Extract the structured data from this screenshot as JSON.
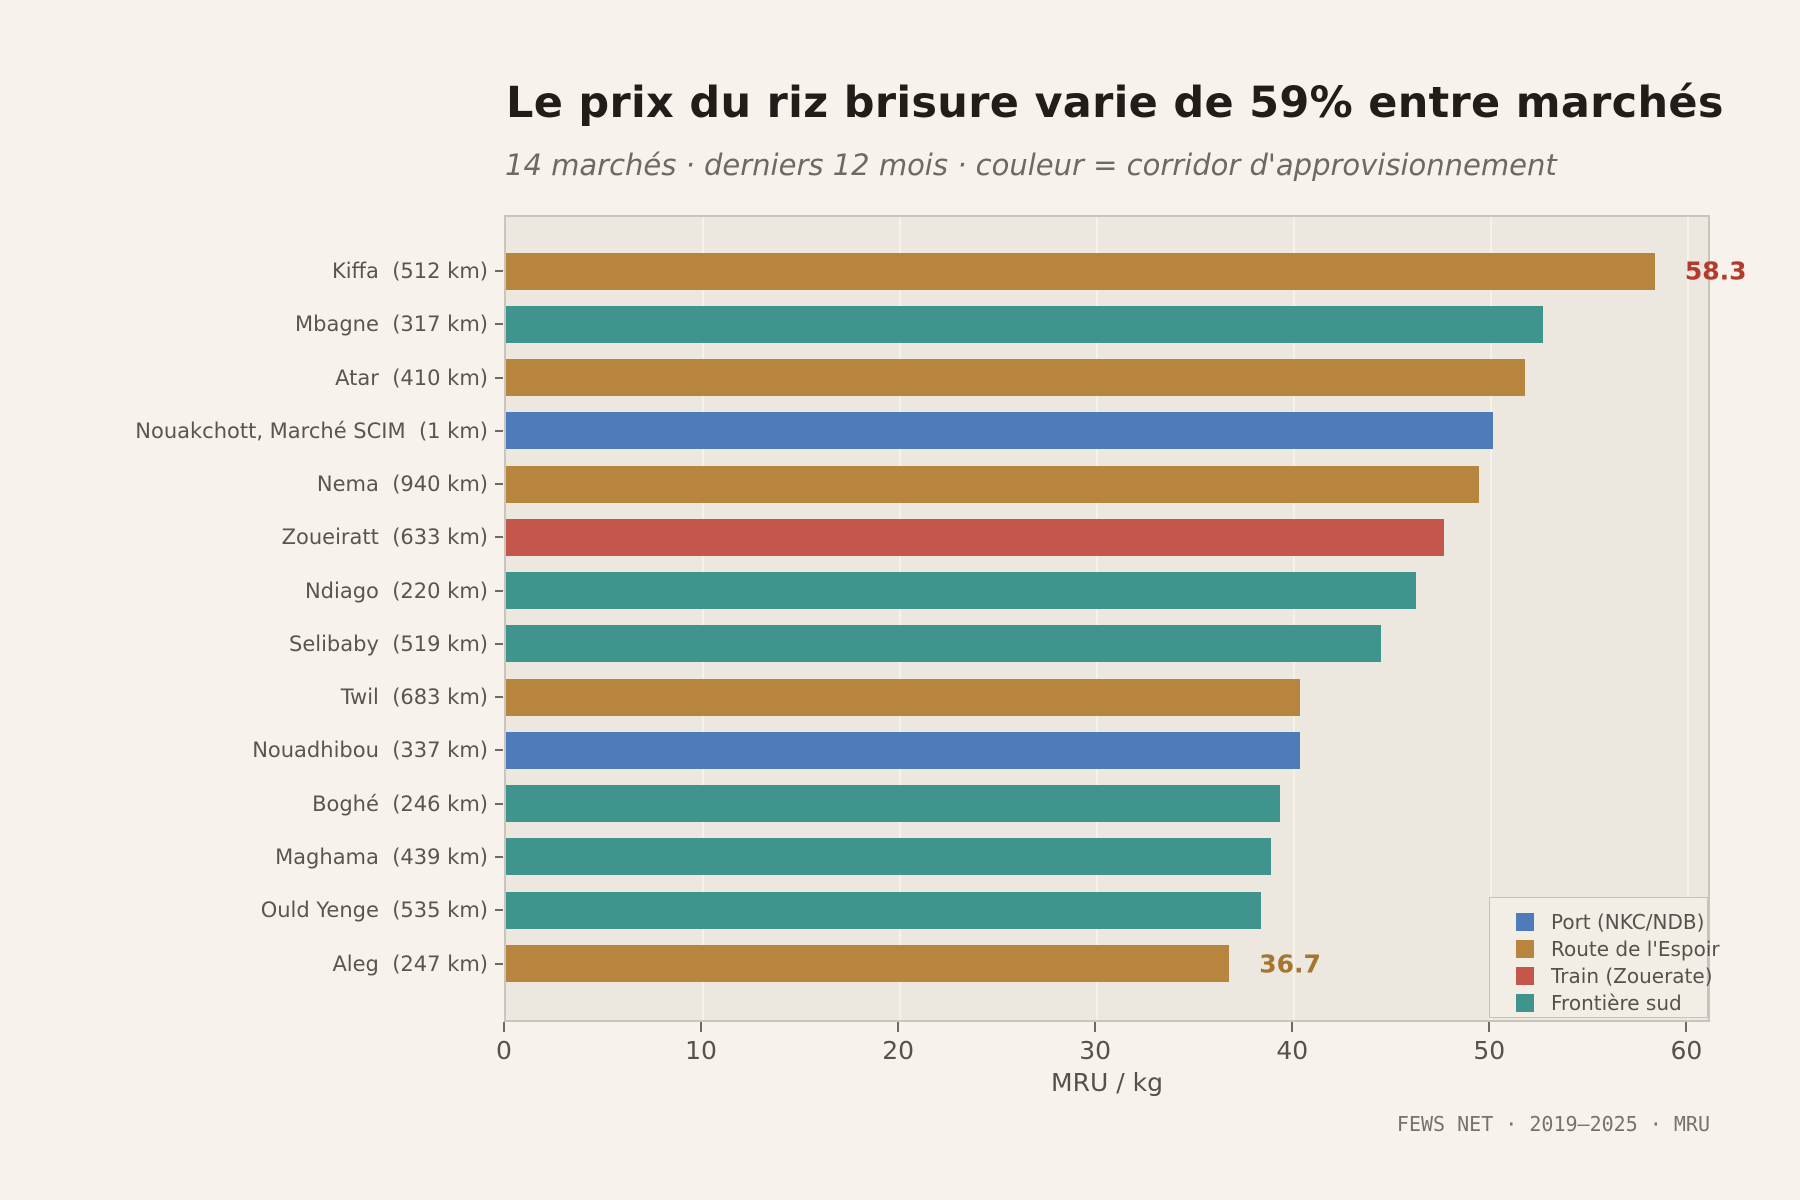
{
  "page": {
    "background_color": "#f7f3ec",
    "plot_background_color": "#ece8df"
  },
  "header": {
    "title": "Le prix du riz brisure varie de 59% entre marchés",
    "subtitle": "14 marchés · derniers 12 mois · couleur = corridor d'approvisionnement"
  },
  "chart_data": {
    "type": "bar",
    "orientation": "horizontal",
    "title": "Le prix du riz brisure varie de 59% entre marchés",
    "subtitle": "14 marchés · derniers 12 mois · couleur = corridor d'approvisionnement",
    "xlabel": "MRU / kg",
    "ylabel": "",
    "xlim": [
      0,
      61.2
    ],
    "xticks": [
      0,
      10,
      20,
      30,
      40,
      50,
      60
    ],
    "grid": "vertical gridlines on",
    "legend_position": "lower right",
    "legend": [
      {
        "label": "Port (NKC/NDB)",
        "color": "#4e7bba"
      },
      {
        "label": "Route de l'Espoir",
        "color": "#b7853e"
      },
      {
        "label": "Train (Zouerate)",
        "color": "#c5564c"
      },
      {
        "label": "Frontière sud",
        "color": "#3f958e"
      }
    ],
    "bars": [
      {
        "market": "Kiffa",
        "distance": "(512 km)",
        "value": 58.3,
        "corridor": "Route de l'Espoir",
        "value_label": "58.3",
        "value_label_color": "#b33b2e"
      },
      {
        "market": "Mbagne",
        "distance": "(317 km)",
        "value": 52.6,
        "corridor": "Frontière sud"
      },
      {
        "market": "Atar",
        "distance": "(410 km)",
        "value": 51.7,
        "corridor": "Route de l'Espoir"
      },
      {
        "market": "Nouakchott, Marché SCIM",
        "distance": "(1 km)",
        "value": 50.1,
        "corridor": "Port (NKC/NDB)"
      },
      {
        "market": "Nema",
        "distance": "(940 km)",
        "value": 49.4,
        "corridor": "Route de l'Espoir"
      },
      {
        "market": "Zoueiratt",
        "distance": "(633 km)",
        "value": 47.6,
        "corridor": "Train (Zouerate)"
      },
      {
        "market": "Ndiago",
        "distance": "(220 km)",
        "value": 46.2,
        "corridor": "Frontière sud"
      },
      {
        "market": "Selibaby",
        "distance": "(519 km)",
        "value": 44.4,
        "corridor": "Frontière sud"
      },
      {
        "market": "Twil",
        "distance": "(683 km)",
        "value": 40.3,
        "corridor": "Route de l'Espoir"
      },
      {
        "market": "Nouadhibou",
        "distance": "(337 km)",
        "value": 40.3,
        "corridor": "Port (NKC/NDB)"
      },
      {
        "market": "Boghé",
        "distance": "(246 km)",
        "value": 39.3,
        "corridor": "Frontière sud"
      },
      {
        "market": "Maghama",
        "distance": "(439 km)",
        "value": 38.8,
        "corridor": "Frontière sud"
      },
      {
        "market": "Ould Yenge",
        "distance": "(535 km)",
        "value": 38.3,
        "corridor": "Frontière sud"
      },
      {
        "market": "Aleg",
        "distance": "(247 km)",
        "value": 36.7,
        "corridor": "Route de l'Espoir",
        "value_label": "36.7",
        "value_label_color": "#a5762f"
      }
    ]
  },
  "footer": {
    "text": "FEWS NET · 2019–2025 · MRU"
  }
}
